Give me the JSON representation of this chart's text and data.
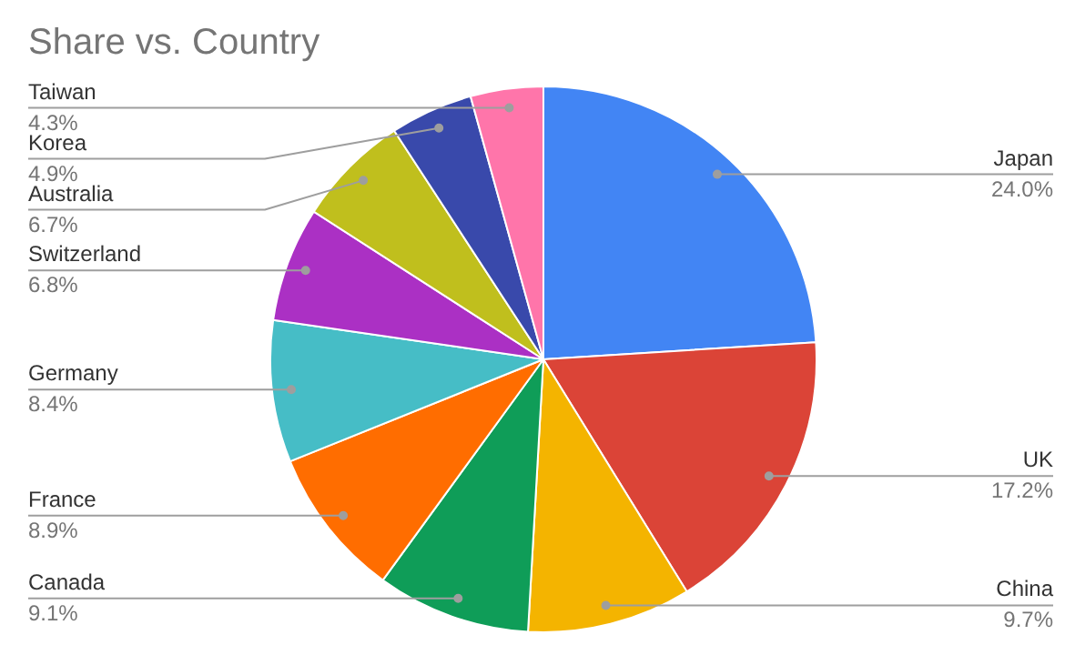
{
  "chart_data": {
    "type": "pie",
    "title": "Share vs. Country",
    "categories": [
      "Japan",
      "UK",
      "China",
      "Canada",
      "France",
      "Germany",
      "Switzerland",
      "Australia",
      "Korea",
      "Taiwan"
    ],
    "values": [
      24.0,
      17.2,
      9.7,
      9.1,
      8.9,
      8.4,
      6.8,
      6.7,
      4.9,
      4.3
    ],
    "value_labels": [
      "24.0%",
      "17.2%",
      "9.7%",
      "9.1%",
      "8.9%",
      "8.4%",
      "6.8%",
      "6.7%",
      "4.9%",
      "4.3%"
    ],
    "colors": [
      "#4285f4",
      "#db4437",
      "#f4b400",
      "#0f9d58",
      "#ff6d00",
      "#46bdc6",
      "#ab30c4",
      "#c0bf1d",
      "#3949ab",
      "#ff75aa"
    ]
  }
}
